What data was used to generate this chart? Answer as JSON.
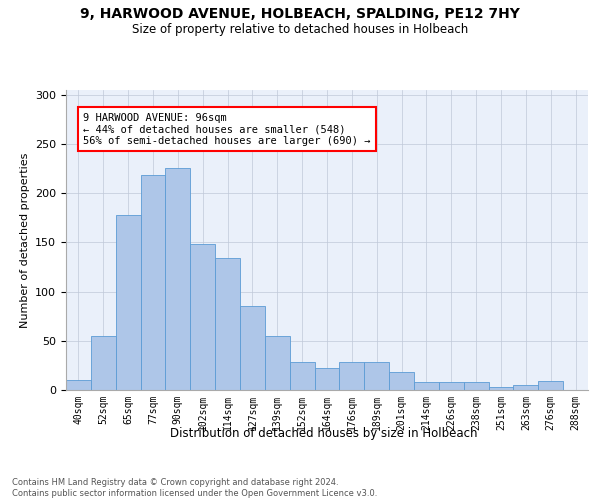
{
  "title": "9, HARWOOD AVENUE, HOLBEACH, SPALDING, PE12 7HY",
  "subtitle": "Size of property relative to detached houses in Holbeach",
  "xlabel": "Distribution of detached houses by size in Holbeach",
  "ylabel": "Number of detached properties",
  "bar_labels": [
    "40sqm",
    "52sqm",
    "65sqm",
    "77sqm",
    "90sqm",
    "102sqm",
    "114sqm",
    "127sqm",
    "139sqm",
    "152sqm",
    "164sqm",
    "176sqm",
    "189sqm",
    "201sqm",
    "214sqm",
    "226sqm",
    "238sqm",
    "251sqm",
    "263sqm",
    "276sqm",
    "288sqm"
  ],
  "bar_values": [
    10,
    55,
    178,
    219,
    226,
    148,
    134,
    85,
    55,
    28,
    22,
    28,
    28,
    18,
    8,
    8,
    8,
    3,
    5,
    9,
    0
  ],
  "bar_color": "#aec6e8",
  "bar_edge_color": "#5b9bd5",
  "annotation_text_line1": "9 HARWOOD AVENUE: 96sqm",
  "annotation_text_line2": "← 44% of detached houses are smaller (548)",
  "annotation_text_line3": "56% of semi-detached houses are larger (690) →",
  "ylim": [
    0,
    305
  ],
  "yticks": [
    0,
    50,
    100,
    150,
    200,
    250,
    300
  ],
  "bg_color": "#eaf0fa",
  "footer_line1": "Contains HM Land Registry data © Crown copyright and database right 2024.",
  "footer_line2": "Contains public sector information licensed under the Open Government Licence v3.0."
}
